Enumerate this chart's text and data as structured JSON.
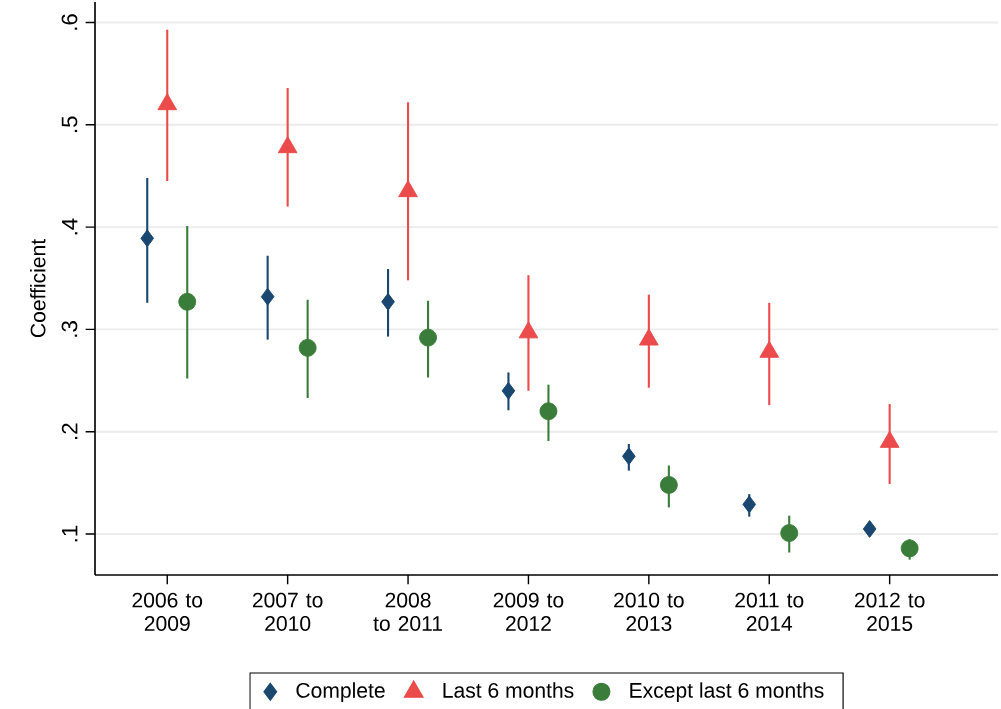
{
  "chart_data": {
    "type": "scatter",
    "ylabel": "Coefficient",
    "categories": [
      "2006 to 2009",
      "2007 to 2010",
      "2008 to 2011",
      "2009 to 2012",
      "2010 to 2013",
      "2011 to 2014",
      "2012 to 2015"
    ],
    "series": [
      {
        "name": "Complete",
        "color": "#1a476f",
        "marker": "diamond",
        "values": [
          0.389,
          0.332,
          0.327,
          0.24,
          0.176,
          0.129,
          0.105
        ],
        "errors": [
          [
            0.326,
            0.448
          ],
          [
            0.29,
            0.372
          ],
          [
            0.293,
            0.359
          ],
          [
            0.221,
            0.258
          ],
          [
            0.162,
            0.188
          ],
          [
            0.117,
            0.139
          ],
          null
        ]
      },
      {
        "name": "Last 6 months",
        "color": "#ec4b4b",
        "marker": "triangle",
        "values": [
          0.52,
          0.478,
          0.435,
          0.297,
          0.29,
          0.278,
          0.19
        ],
        "errors": [
          [
            0.445,
            0.593
          ],
          [
            0.42,
            0.536
          ],
          [
            0.348,
            0.522
          ],
          [
            0.24,
            0.353
          ],
          [
            0.243,
            0.334
          ],
          [
            0.226,
            0.326
          ],
          [
            0.149,
            0.227
          ]
        ]
      },
      {
        "name": "Except last 6 months",
        "color": "#3a7d3a",
        "marker": "circle",
        "values": [
          0.327,
          0.282,
          0.292,
          0.22,
          0.148,
          0.101,
          0.086
        ],
        "errors": [
          [
            0.252,
            0.401
          ],
          [
            0.233,
            0.329
          ],
          [
            0.253,
            0.328
          ],
          [
            0.191,
            0.246
          ],
          [
            0.126,
            0.167
          ],
          [
            0.082,
            0.118
          ],
          [
            0.075,
            0.095
          ]
        ]
      }
    ],
    "ylim": [
      0.06,
      0.62
    ],
    "yticks": [
      {
        "value": 0.1,
        "label": ".1"
      },
      {
        "value": 0.2,
        "label": ".2"
      },
      {
        "value": 0.3,
        "label": ".3"
      },
      {
        "value": 0.4,
        "label": ".4"
      },
      {
        "value": 0.5,
        "label": ".5"
      },
      {
        "value": 0.6,
        "label": ".6"
      }
    ],
    "grid": "y",
    "legend": "bottom"
  }
}
